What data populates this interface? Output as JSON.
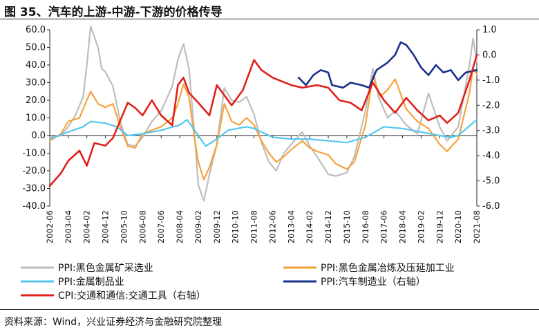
{
  "header": {
    "title": "图 35、汽车的上游-中游-下游的价格传导"
  },
  "footer": {
    "source": "资料来源：Wind，兴业证券经济与金融研究院整理"
  },
  "chart_data": {
    "type": "line",
    "x_ticks": [
      "2002-06",
      "2003-04",
      "2004-02",
      "2004-12",
      "2005-10",
      "2006-08",
      "2007-06",
      "2008-04",
      "2009-02",
      "2009-12",
      "2010-10",
      "2011-08",
      "2012-06",
      "2013-04",
      "2014-02",
      "2014-12",
      "2015-10",
      "2016-08",
      "2017-06",
      "2018-04",
      "2019-02",
      "2019-12",
      "2020-10",
      "2021-08"
    ],
    "y_left": {
      "min": -40,
      "max": 60,
      "ticks": [
        "60.0",
        "50.0",
        "40.0",
        "30.0",
        "20.0",
        "10.0",
        "0.0",
        "-10.0",
        "-20.0",
        "-30.0",
        "-40.0"
      ]
    },
    "y_right": {
      "min": -6,
      "max": 1,
      "ticks": [
        "1.0",
        "0.0",
        "-1.0",
        "-2.0",
        "-3.0",
        "-4.0",
        "-5.0",
        "-6.0"
      ]
    },
    "colors": {
      "ppi_ferrous_mining": "#BDBDBD",
      "ppi_ferrous_smelting": "#F7A23A",
      "ppi_metal_products": "#56C6EE",
      "ppi_auto": "#1A2E8C",
      "cpi_transport": "#E0201B"
    },
    "series": [
      {
        "key": "ppi_ferrous_mining",
        "name": "PPI:黑色金属矿采选业",
        "axis": "left",
        "points": [
          [
            "2002-06",
            -1
          ],
          [
            "2002-12",
            0
          ],
          [
            "2003-04",
            5
          ],
          [
            "2003-08",
            12
          ],
          [
            "2003-12",
            22
          ],
          [
            "2004-02",
            40
          ],
          [
            "2004-04",
            62
          ],
          [
            "2004-08",
            50
          ],
          [
            "2004-10",
            38
          ],
          [
            "2004-12",
            36
          ],
          [
            "2005-04",
            28
          ],
          [
            "2005-08",
            8
          ],
          [
            "2005-12",
            -5
          ],
          [
            "2006-04",
            -6
          ],
          [
            "2006-08",
            -1
          ],
          [
            "2007-01",
            8
          ],
          [
            "2007-06",
            14
          ],
          [
            "2007-12",
            28
          ],
          [
            "2008-03",
            43
          ],
          [
            "2008-06",
            52
          ],
          [
            "2008-09",
            38
          ],
          [
            "2008-12",
            0
          ],
          [
            "2009-02",
            -28
          ],
          [
            "2009-05",
            -37
          ],
          [
            "2009-08",
            -22
          ],
          [
            "2009-12",
            -5
          ],
          [
            "2010-04",
            27
          ],
          [
            "2010-08",
            20
          ],
          [
            "2010-12",
            19
          ],
          [
            "2011-04",
            22
          ],
          [
            "2011-08",
            12
          ],
          [
            "2011-12",
            -4
          ],
          [
            "2012-04",
            -15
          ],
          [
            "2012-08",
            -20
          ],
          [
            "2012-12",
            -10
          ],
          [
            "2013-04",
            -5
          ],
          [
            "2013-10",
            2
          ],
          [
            "2014-02",
            -6
          ],
          [
            "2014-06",
            -12
          ],
          [
            "2014-12",
            -22
          ],
          [
            "2015-04",
            -23
          ],
          [
            "2015-10",
            -21
          ],
          [
            "2016-02",
            -12
          ],
          [
            "2016-08",
            14
          ],
          [
            "2016-12",
            38
          ],
          [
            "2017-03",
            22
          ],
          [
            "2017-08",
            10
          ],
          [
            "2017-12",
            14
          ],
          [
            "2018-06",
            6
          ],
          [
            "2018-12",
            1
          ],
          [
            "2019-06",
            24
          ],
          [
            "2019-12",
            5
          ],
          [
            "2020-04",
            -3
          ],
          [
            "2020-10",
            5
          ],
          [
            "2021-04",
            40
          ],
          [
            "2021-06",
            55
          ],
          [
            "2021-08",
            42
          ]
        ]
      },
      {
        "key": "ppi_ferrous_smelting",
        "name": "PPI:黑色金属冶炼及压延加工业",
        "axis": "left",
        "points": [
          [
            "2002-06",
            -3
          ],
          [
            "2002-12",
            1
          ],
          [
            "2003-04",
            8
          ],
          [
            "2003-10",
            10
          ],
          [
            "2004-02",
            20
          ],
          [
            "2004-04",
            25
          ],
          [
            "2004-08",
            18
          ],
          [
            "2004-12",
            16
          ],
          [
            "2005-04",
            18
          ],
          [
            "2005-08",
            5
          ],
          [
            "2005-12",
            -6
          ],
          [
            "2006-04",
            -7
          ],
          [
            "2006-08",
            1
          ],
          [
            "2007-01",
            3
          ],
          [
            "2007-06",
            5
          ],
          [
            "2007-12",
            10
          ],
          [
            "2008-03",
            18
          ],
          [
            "2008-06",
            29
          ],
          [
            "2008-09",
            22
          ],
          [
            "2008-12",
            -2
          ],
          [
            "2009-02",
            -15
          ],
          [
            "2009-05",
            -25
          ],
          [
            "2009-08",
            -18
          ],
          [
            "2009-12",
            -5
          ],
          [
            "2010-04",
            18
          ],
          [
            "2010-08",
            8
          ],
          [
            "2010-12",
            6
          ],
          [
            "2011-04",
            10
          ],
          [
            "2011-08",
            6
          ],
          [
            "2011-12",
            -3
          ],
          [
            "2012-04",
            -10
          ],
          [
            "2012-08",
            -15
          ],
          [
            "2012-12",
            -12
          ],
          [
            "2013-04",
            -8
          ],
          [
            "2013-10",
            -3
          ],
          [
            "2014-02",
            -7
          ],
          [
            "2014-06",
            -9
          ],
          [
            "2014-12",
            -11
          ],
          [
            "2015-04",
            -16
          ],
          [
            "2015-10",
            -19
          ],
          [
            "2016-02",
            -15
          ],
          [
            "2016-08",
            6
          ],
          [
            "2016-12",
            34
          ],
          [
            "2017-04",
            22
          ],
          [
            "2017-08",
            26
          ],
          [
            "2017-12",
            32
          ],
          [
            "2018-06",
            15
          ],
          [
            "2018-12",
            8
          ],
          [
            "2019-06",
            4
          ],
          [
            "2019-12",
            -5
          ],
          [
            "2020-04",
            -9
          ],
          [
            "2020-10",
            -2
          ],
          [
            "2021-04",
            24
          ],
          [
            "2021-06",
            38
          ],
          [
            "2021-08",
            35
          ]
        ]
      },
      {
        "key": "ppi_metal_products",
        "name": "PPI:金属制品业",
        "axis": "left",
        "points": [
          [
            "2002-06",
            -2
          ],
          [
            "2003-04",
            2
          ],
          [
            "2003-12",
            5
          ],
          [
            "2004-04",
            8
          ],
          [
            "2004-12",
            7
          ],
          [
            "2005-06",
            5
          ],
          [
            "2005-12",
            0
          ],
          [
            "2006-08",
            1
          ],
          [
            "2007-06",
            3
          ],
          [
            "2008-04",
            6
          ],
          [
            "2008-08",
            9
          ],
          [
            "2008-12",
            3
          ],
          [
            "2009-06",
            -6
          ],
          [
            "2009-12",
            -2
          ],
          [
            "2010-06",
            3
          ],
          [
            "2011-04",
            5
          ],
          [
            "2011-08",
            4
          ],
          [
            "2012-06",
            -1
          ],
          [
            "2013-04",
            -2
          ],
          [
            "2014-02",
            -2
          ],
          [
            "2014-12",
            -3
          ],
          [
            "2015-10",
            -4
          ],
          [
            "2016-08",
            -1
          ],
          [
            "2017-06",
            5
          ],
          [
            "2018-04",
            4
          ],
          [
            "2019-02",
            2
          ],
          [
            "2019-12",
            0
          ],
          [
            "2020-06",
            -1
          ],
          [
            "2020-10",
            0
          ],
          [
            "2021-08",
            9
          ]
        ]
      },
      {
        "key": "ppi_auto",
        "name": "PPI:汽车制造业（右轴）",
        "axis": "right",
        "points": [
          [
            "2013-08",
            -0.9
          ],
          [
            "2013-12",
            -1.2
          ],
          [
            "2014-04",
            -0.8
          ],
          [
            "2014-08",
            -0.6
          ],
          [
            "2014-12",
            -0.7
          ],
          [
            "2015-02",
            -1.2
          ],
          [
            "2015-08",
            -1.3
          ],
          [
            "2015-12",
            -1.1
          ],
          [
            "2016-06",
            -1.2
          ],
          [
            "2016-10",
            -1.3
          ],
          [
            "2017-02",
            -0.6
          ],
          [
            "2017-08",
            -0.3
          ],
          [
            "2017-12",
            0.0
          ],
          [
            "2018-03",
            0.5
          ],
          [
            "2018-06",
            0.4
          ],
          [
            "2018-10",
            0.0
          ],
          [
            "2019-02",
            -0.5
          ],
          [
            "2019-06",
            -0.8
          ],
          [
            "2019-10",
            -0.4
          ],
          [
            "2020-02",
            -0.7
          ],
          [
            "2020-06",
            -0.6
          ],
          [
            "2020-10",
            -1.0
          ],
          [
            "2021-02",
            -0.7
          ],
          [
            "2021-08",
            -0.6
          ]
        ]
      },
      {
        "key": "cpi_transport",
        "name": "CPI:交通和通信:交通工具（右轴）",
        "axis": "right",
        "points": [
          [
            "2002-06",
            -5.2
          ],
          [
            "2002-12",
            -4.7
          ],
          [
            "2003-04",
            -4.2
          ],
          [
            "2003-10",
            -3.8
          ],
          [
            "2004-02",
            -4.4
          ],
          [
            "2004-06",
            -3.5
          ],
          [
            "2004-12",
            -3.6
          ],
          [
            "2005-04",
            -3.3
          ],
          [
            "2005-08",
            -2.6
          ],
          [
            "2005-12",
            -1.9
          ],
          [
            "2006-04",
            -2.1
          ],
          [
            "2006-08",
            -2.4
          ],
          [
            "2007-01",
            -1.8
          ],
          [
            "2007-06",
            -2.4
          ],
          [
            "2007-12",
            -2.8
          ],
          [
            "2008-03",
            -1.2
          ],
          [
            "2008-06",
            -0.9
          ],
          [
            "2008-09",
            -1.5
          ],
          [
            "2009-02",
            -1.9
          ],
          [
            "2009-08",
            -2.4
          ],
          [
            "2009-12",
            -1.2
          ],
          [
            "2010-04",
            -1.6
          ],
          [
            "2010-08",
            -2.0
          ],
          [
            "2011-02",
            -1.4
          ],
          [
            "2011-08",
            -0.2
          ],
          [
            "2011-12",
            -0.6
          ],
          [
            "2012-06",
            -0.9
          ],
          [
            "2013-04",
            -1.2
          ],
          [
            "2013-10",
            -1.3
          ],
          [
            "2014-06",
            -1.2
          ],
          [
            "2014-12",
            -1.3
          ],
          [
            "2015-06",
            -1.8
          ],
          [
            "2015-12",
            -1.9
          ],
          [
            "2016-06",
            -2.2
          ],
          [
            "2016-12",
            -1.1
          ],
          [
            "2017-06",
            -1.8
          ],
          [
            "2017-12",
            -2.3
          ],
          [
            "2018-06",
            -1.7
          ],
          [
            "2018-12",
            -2.2
          ],
          [
            "2019-06",
            -2.6
          ],
          [
            "2019-12",
            -2.4
          ],
          [
            "2020-04",
            -2.7
          ],
          [
            "2020-10",
            -2.3
          ],
          [
            "2021-04",
            -1.0
          ],
          [
            "2021-08",
            0.0
          ]
        ]
      }
    ]
  }
}
